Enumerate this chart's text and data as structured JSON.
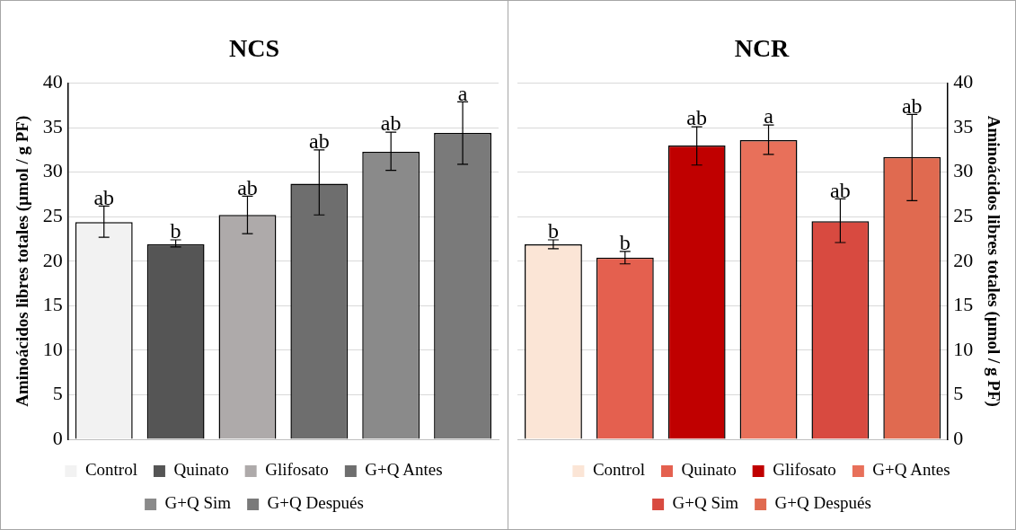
{
  "chart_data": [
    {
      "type": "bar",
      "title": "NCS",
      "ylabel": "Aminoácidos libres totales (µmol / g PF)",
      "categories": [
        null,
        null,
        null,
        null,
        null,
        null
      ],
      "ylim": [
        0,
        40
      ],
      "yticks": [
        0,
        5,
        10,
        15,
        20,
        25,
        30,
        35,
        40
      ],
      "grid": "y",
      "legend": "bottom",
      "series": [
        {
          "name": "Control",
          "color": "#f2f2f2",
          "values": [
            24.4,
            null,
            null,
            null,
            null,
            null
          ],
          "errors": [
            [
              22.7,
              26.2
            ],
            null,
            null,
            null,
            null,
            null
          ],
          "value_labels": [
            "ab",
            null,
            null,
            null,
            null,
            null
          ]
        },
        {
          "name": "Quinato",
          "color": "#555555",
          "values": [
            null,
            21.9,
            null,
            null,
            null,
            null
          ],
          "errors": [
            null,
            [
              21.6,
              22.4
            ],
            null,
            null,
            null,
            null
          ],
          "value_labels": [
            null,
            "b",
            null,
            null,
            null,
            null
          ]
        },
        {
          "name": "Glifosato",
          "color": "#aeaaaa",
          "values": [
            null,
            null,
            25.2,
            null,
            null,
            null
          ],
          "errors": [
            null,
            null,
            [
              23.1,
              27.3
            ],
            null,
            null,
            null
          ],
          "value_labels": [
            null,
            null,
            "ab",
            null,
            null,
            null
          ]
        },
        {
          "name": "G+Q Antes",
          "color": "#6e6e6e",
          "values": [
            null,
            null,
            null,
            28.7,
            null,
            null
          ],
          "errors": [
            null,
            null,
            null,
            [
              25.2,
              32.5
            ],
            null,
            null
          ],
          "value_labels": [
            null,
            null,
            null,
            "ab",
            null,
            null
          ]
        },
        {
          "name": "G+Q Sim",
          "color": "#8a8a8a",
          "values": [
            null,
            null,
            null,
            null,
            32.3,
            null
          ],
          "errors": [
            null,
            null,
            null,
            null,
            [
              30.2,
              34.5
            ],
            null
          ],
          "value_labels": [
            null,
            null,
            null,
            null,
            "ab",
            null
          ]
        },
        {
          "name": "G+Q Después",
          "color": "#7a7a7a",
          "values": [
            null,
            null,
            null,
            null,
            null,
            34.4
          ],
          "errors": [
            null,
            null,
            null,
            null,
            null,
            [
              30.9,
              37.9
            ]
          ],
          "value_labels": [
            null,
            null,
            null,
            null,
            null,
            "a"
          ]
        }
      ]
    },
    {
      "type": "bar",
      "title": "NCR",
      "y2label": "Aminoácidos libres totales (µmol / g PF)",
      "categories": [
        null,
        null,
        null,
        null,
        null,
        null
      ],
      "y2lim": [
        0,
        40
      ],
      "y2ticks": [
        0,
        5,
        10,
        15,
        20,
        25,
        30,
        35,
        40
      ],
      "grid": "y",
      "legend": "bottom",
      "series": [
        {
          "name": "Control",
          "axis": "y2",
          "color": "#fbe5d6",
          "values": [
            21.9,
            null,
            null,
            null,
            null,
            null
          ],
          "errors": [
            [
              21.4,
              22.4
            ],
            null,
            null,
            null,
            null,
            null
          ],
          "value_labels": [
            "b",
            null,
            null,
            null,
            null,
            null
          ]
        },
        {
          "name": "Quinato",
          "axis": "y2",
          "color": "#e4604f",
          "values": [
            null,
            20.4,
            null,
            null,
            null,
            null
          ],
          "errors": [
            null,
            [
              19.7,
              21.1
            ],
            null,
            null,
            null,
            null
          ],
          "value_labels": [
            null,
            "b",
            null,
            null,
            null,
            null
          ]
        },
        {
          "name": "Glifosato",
          "axis": "y2",
          "color": "#c00000",
          "values": [
            null,
            null,
            33.0,
            null,
            null,
            null
          ],
          "errors": [
            null,
            null,
            [
              30.8,
              35.1
            ],
            null,
            null,
            null
          ],
          "value_labels": [
            null,
            null,
            "ab",
            null,
            null,
            null
          ]
        },
        {
          "name": "G+Q Antes",
          "axis": "y2",
          "color": "#e8705a",
          "values": [
            null,
            null,
            null,
            33.6,
            null,
            null
          ],
          "errors": [
            null,
            null,
            null,
            [
              32.0,
              35.3
            ],
            null,
            null
          ],
          "value_labels": [
            null,
            null,
            null,
            "a",
            null,
            null
          ]
        },
        {
          "name": "G+Q Sim",
          "axis": "y2",
          "color": "#d84a40",
          "values": [
            null,
            null,
            null,
            null,
            24.5,
            null
          ],
          "errors": [
            null,
            null,
            null,
            null,
            [
              22.1,
              27.0
            ],
            null
          ],
          "value_labels": [
            null,
            null,
            null,
            null,
            "ab",
            null
          ]
        },
        {
          "name": "G+Q Después",
          "axis": "y2",
          "color": "#e06a50",
          "values": [
            null,
            null,
            null,
            null,
            null,
            31.7
          ],
          "errors": [
            null,
            null,
            null,
            null,
            null,
            [
              26.8,
              36.5
            ]
          ],
          "value_labels": [
            null,
            null,
            null,
            null,
            null,
            "ab"
          ]
        }
      ]
    }
  ]
}
